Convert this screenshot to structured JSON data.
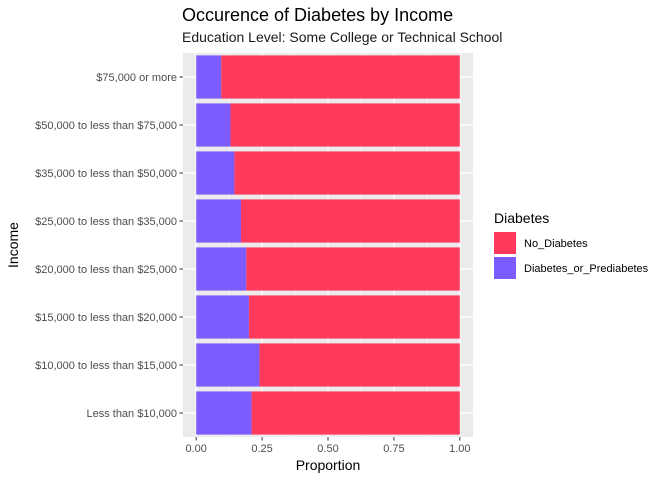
{
  "chart_data": {
    "type": "bar",
    "orientation": "horizontal",
    "stacked": true,
    "title": "Occurence of Diabetes by Income",
    "subtitle": "Education Level: Some College or Technical School",
    "xlabel": "Proportion",
    "ylabel": "Income",
    "xlim": [
      0,
      1
    ],
    "x_ticks": [
      "0.00",
      "0.25",
      "0.50",
      "0.75",
      "1.00"
    ],
    "x_tick_values": [
      0,
      0.25,
      0.5,
      0.75,
      1
    ],
    "grid": true,
    "legend_position": "right",
    "legend_title": "Diabetes",
    "categories": [
      "$75,000 or more",
      "$50,000 to less than $75,000",
      "$35,000 to less than $50,000",
      "$25,000 to less than $35,000",
      "$20,000 to less than $25,000",
      "$15,000 to less than $20,000",
      "$10,000 to less than $15,000",
      "Less than $10,000"
    ],
    "series": [
      {
        "name": "Diabetes_or_Prediabetes",
        "color": "#7c5cff",
        "values": [
          0.095,
          0.13,
          0.145,
          0.17,
          0.19,
          0.2,
          0.24,
          0.21
        ]
      },
      {
        "name": "No_Diabetes",
        "color": "#ff3a5c",
        "values": [
          0.905,
          0.87,
          0.855,
          0.83,
          0.81,
          0.8,
          0.76,
          0.79
        ]
      }
    ],
    "legend_entries": [
      {
        "name": "No_Diabetes",
        "color": "#ff3a5c"
      },
      {
        "name": "Diabetes_or_Prediabetes",
        "color": "#7c5cff"
      }
    ],
    "panel_background": "#ebebeb",
    "grid_color": "#ffffff"
  }
}
